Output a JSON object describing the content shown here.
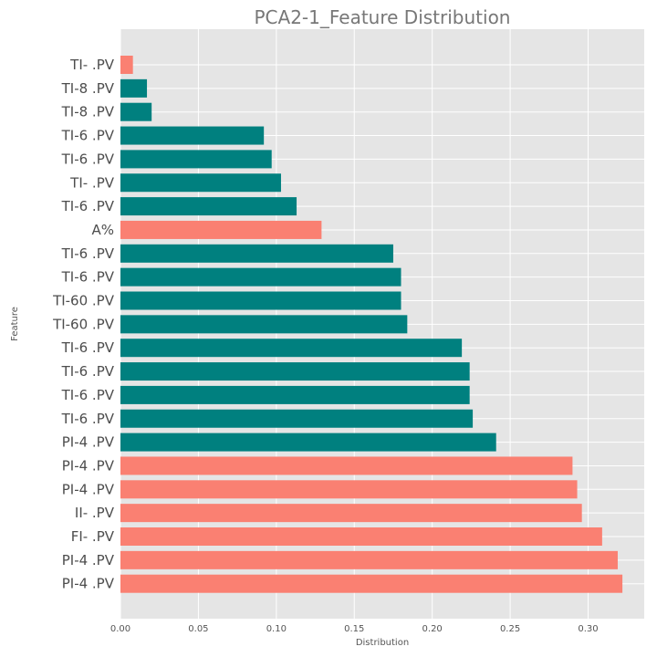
{
  "chart_data": {
    "type": "bar",
    "orientation": "horizontal",
    "title": "PCA2-1_Feature Distribution",
    "xlabel": "Distribution",
    "ylabel": "Feature",
    "xlim": [
      0,
      0.336
    ],
    "xticks": [
      "0.00",
      "0.05",
      "0.10",
      "0.15",
      "0.20",
      "0.25",
      "0.30"
    ],
    "grid": true,
    "legend": "none",
    "colors": {
      "positive": "#00807F",
      "negative": "#FA8072",
      "panel": "#E5E5E5",
      "grid": "#FFFFFF"
    },
    "categories": [
      "TI-  .PV",
      "TI-8  .PV",
      "TI-8  .PV",
      "TI-6  .PV",
      "TI-6  .PV",
      "TI-  .PV",
      "TI-6  .PV",
      "A%",
      "TI-6  .PV",
      "TI-6  .PV",
      "TI-60  .PV",
      "TI-60  .PV",
      "TI-6  .PV",
      "TI-6  .PV",
      "TI-6  .PV",
      "TI-6  .PV",
      "PI-4  .PV",
      "PI-4  .PV",
      "PI-4  .PV",
      "II-  .PV",
      "FI-  .PV",
      "PI-4  .PV",
      "PI-4  .PV"
    ],
    "values": [
      0.008,
      0.017,
      0.02,
      0.092,
      0.097,
      0.103,
      0.113,
      0.129,
      0.175,
      0.18,
      0.18,
      0.184,
      0.219,
      0.224,
      0.224,
      0.226,
      0.241,
      0.29,
      0.293,
      0.296,
      0.309,
      0.319,
      0.322
    ],
    "sign": [
      "neg",
      "pos",
      "pos",
      "pos",
      "pos",
      "pos",
      "pos",
      "neg",
      "pos",
      "pos",
      "pos",
      "pos",
      "pos",
      "pos",
      "pos",
      "pos",
      "pos",
      "neg",
      "neg",
      "neg",
      "neg",
      "neg",
      "neg"
    ]
  }
}
